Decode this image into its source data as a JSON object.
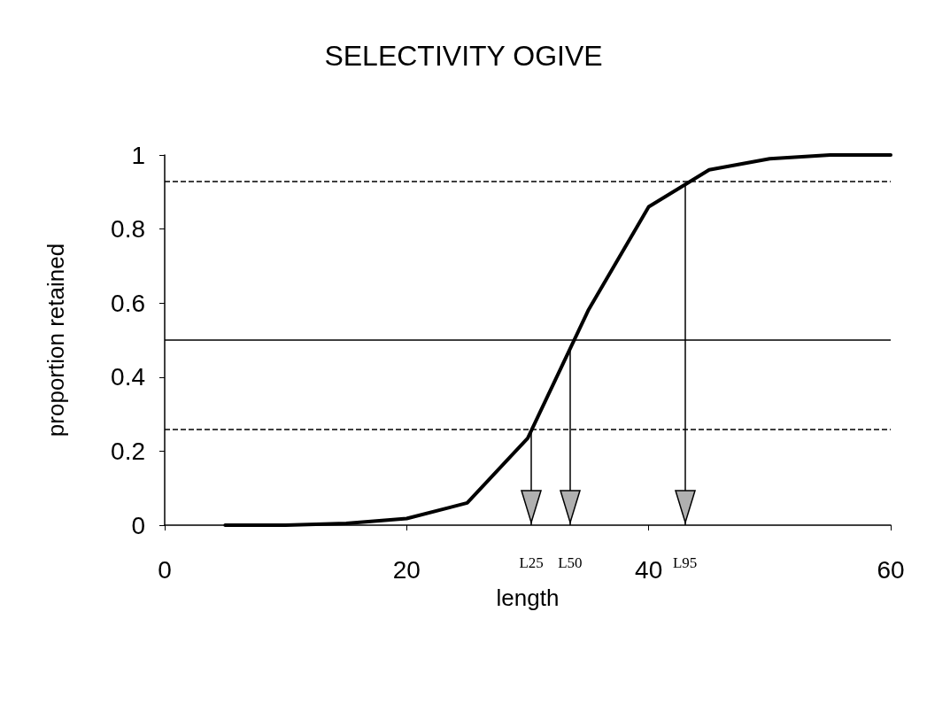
{
  "chart_data": {
    "type": "line",
    "title": "SELECTIVITY OGIVE",
    "xlabel": "length",
    "ylabel": "proportion retained",
    "x": [
      5,
      10,
      15,
      20,
      25,
      30,
      35,
      40,
      45,
      50,
      55,
      60
    ],
    "series": [
      {
        "color": "#000000",
        "values": [
          0,
          0,
          0.005,
          0.018,
          0.06,
          0.235,
          0.58,
          0.86,
          0.96,
          0.99,
          1,
          1
        ]
      }
    ],
    "xlim": [
      0,
      60
    ],
    "xticks": [
      0,
      20,
      40,
      60
    ],
    "ylim": [
      0,
      1
    ],
    "yticks": [
      0,
      0.2,
      0.4,
      0.6,
      0.8,
      1
    ],
    "grid": false,
    "marker": "none",
    "line_style": "solid",
    "ref_lines": [
      {
        "axis": "y",
        "value": 0.93,
        "color": "#000000",
        "line_style": "dashed"
      },
      {
        "axis": "y",
        "value": 0.5,
        "color": "#000000",
        "line_style": "solid"
      },
      {
        "axis": "y",
        "value": 0.26,
        "color": "#000000",
        "line_style": "dashed"
      },
      {
        "axis": "x",
        "value": 30.3,
        "label": "L25",
        "color": "#000000",
        "line_style": "solid"
      },
      {
        "axis": "x",
        "value": 33.5,
        "label": "L50",
        "color": "#000000",
        "line_style": "solid"
      },
      {
        "axis": "x",
        "value": 43,
        "label": "L95",
        "color": "#000000",
        "line_style": "solid"
      }
    ]
  }
}
